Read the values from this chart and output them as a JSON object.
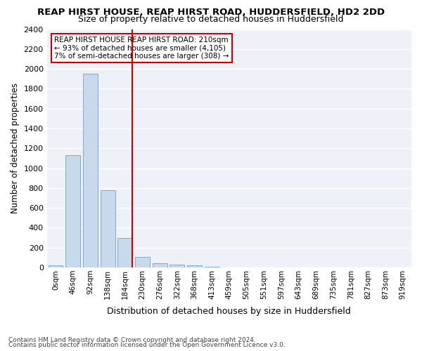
{
  "title": "REAP HIRST HOUSE, REAP HIRST ROAD, HUDDERSFIELD, HD2 2DD",
  "subtitle": "Size of property relative to detached houses in Huddersfield",
  "xlabel": "Distribution of detached houses by size in Huddersfield",
  "ylabel": "Number of detached properties",
  "bar_color": "#c9d9ec",
  "bar_edge_color": "#7aacd6",
  "background_color": "#eef2f8",
  "grid_color": "#ffffff",
  "bins": [
    "0sqm",
    "46sqm",
    "92sqm",
    "138sqm",
    "184sqm",
    "230sqm",
    "276sqm",
    "322sqm",
    "368sqm",
    "413sqm",
    "459sqm",
    "505sqm",
    "551sqm",
    "597sqm",
    "643sqm",
    "689sqm",
    "735sqm",
    "781sqm",
    "827sqm",
    "873sqm",
    "919sqm"
  ],
  "values": [
    20,
    1130,
    1950,
    780,
    300,
    105,
    40,
    25,
    20,
    5,
    0,
    0,
    0,
    0,
    0,
    0,
    0,
    0,
    0,
    0,
    0
  ],
  "ylim": [
    0,
    2400
  ],
  "yticks": [
    0,
    200,
    400,
    600,
    800,
    1000,
    1200,
    1400,
    1600,
    1800,
    2000,
    2200,
    2400
  ],
  "red_line_bin_index": 4,
  "annotation_line1": "REAP HIRST HOUSE REAP HIRST ROAD: 210sqm",
  "annotation_line2": "← 93% of detached houses are smaller (4,105)",
  "annotation_line3": "7% of semi-detached houses are larger (308) →",
  "footer1": "Contains HM Land Registry data © Crown copyright and database right 2024.",
  "footer2": "Contains public sector information licensed under the Open Government Licence v3.0.",
  "red_line_color": "#cc0000",
  "annotation_box_color": "#ffffff",
  "annotation_box_edge": "#cc0000"
}
